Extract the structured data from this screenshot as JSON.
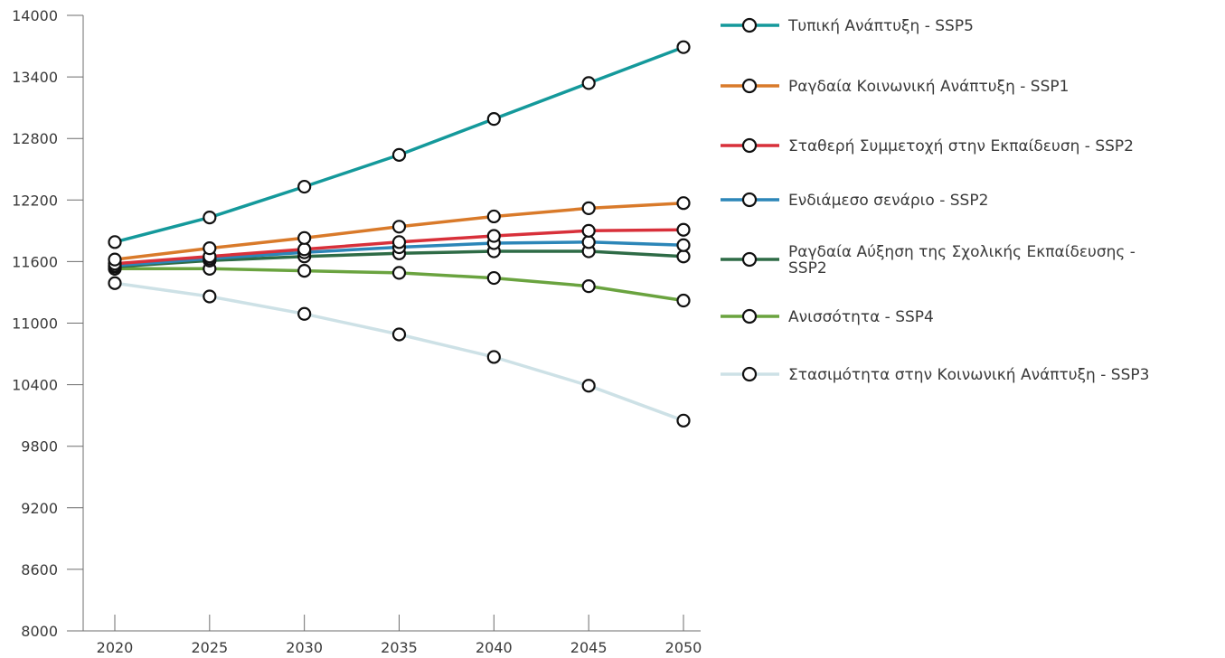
{
  "chart_data": {
    "type": "line",
    "title": "",
    "xlabel": "",
    "ylabel": "",
    "x": [
      2020,
      2025,
      2030,
      2035,
      2040,
      2045,
      2050
    ],
    "ylim": [
      8000,
      14000
    ],
    "yticks": [
      8000,
      8600,
      9200,
      9800,
      10400,
      11000,
      11600,
      12200,
      12800,
      13400,
      14000
    ],
    "grid": false,
    "legend_position": "right",
    "series": [
      {
        "name": "Τυπική Ανάπτυξη - SSP5",
        "color": "#14999b",
        "values": [
          11790,
          12030,
          12330,
          12640,
          12990,
          13340,
          13690
        ]
      },
      {
        "name": "Ραγδαία Κοινωνική Ανάπτυξη - SSP1",
        "color": "#d97a2a",
        "values": [
          11620,
          11730,
          11830,
          11940,
          12040,
          12120,
          12170
        ]
      },
      {
        "name": "Σταθερή Συμμετοχή στην Εκπαίδευση - SSP2",
        "color": "#d8303a",
        "values": [
          11580,
          11650,
          11720,
          11790,
          11850,
          11900,
          11910
        ]
      },
      {
        "name": "Ενδιάμεσο σενάριο - SSP2",
        "color": "#2c86b8",
        "values": [
          11560,
          11630,
          11690,
          11740,
          11780,
          11790,
          11760
        ]
      },
      {
        "name": "Ραγδαία Αύξηση της Σχολικής Εκπαίδευσης - SSP2",
        "color": "#2e6b46",
        "values": [
          11550,
          11610,
          11650,
          11680,
          11700,
          11700,
          11650
        ]
      },
      {
        "name": "Ανισσότητα - SSP4",
        "color": "#6aa33f",
        "values": [
          11530,
          11530,
          11510,
          11490,
          11440,
          11360,
          11220
        ]
      },
      {
        "name": "Στασιμότητα στην Κοινωνική Ανάπτυξη - SSP3",
        "color": "#cde1e6",
        "values": [
          11390,
          11260,
          11090,
          10890,
          10670,
          10390,
          10050
        ]
      }
    ]
  }
}
